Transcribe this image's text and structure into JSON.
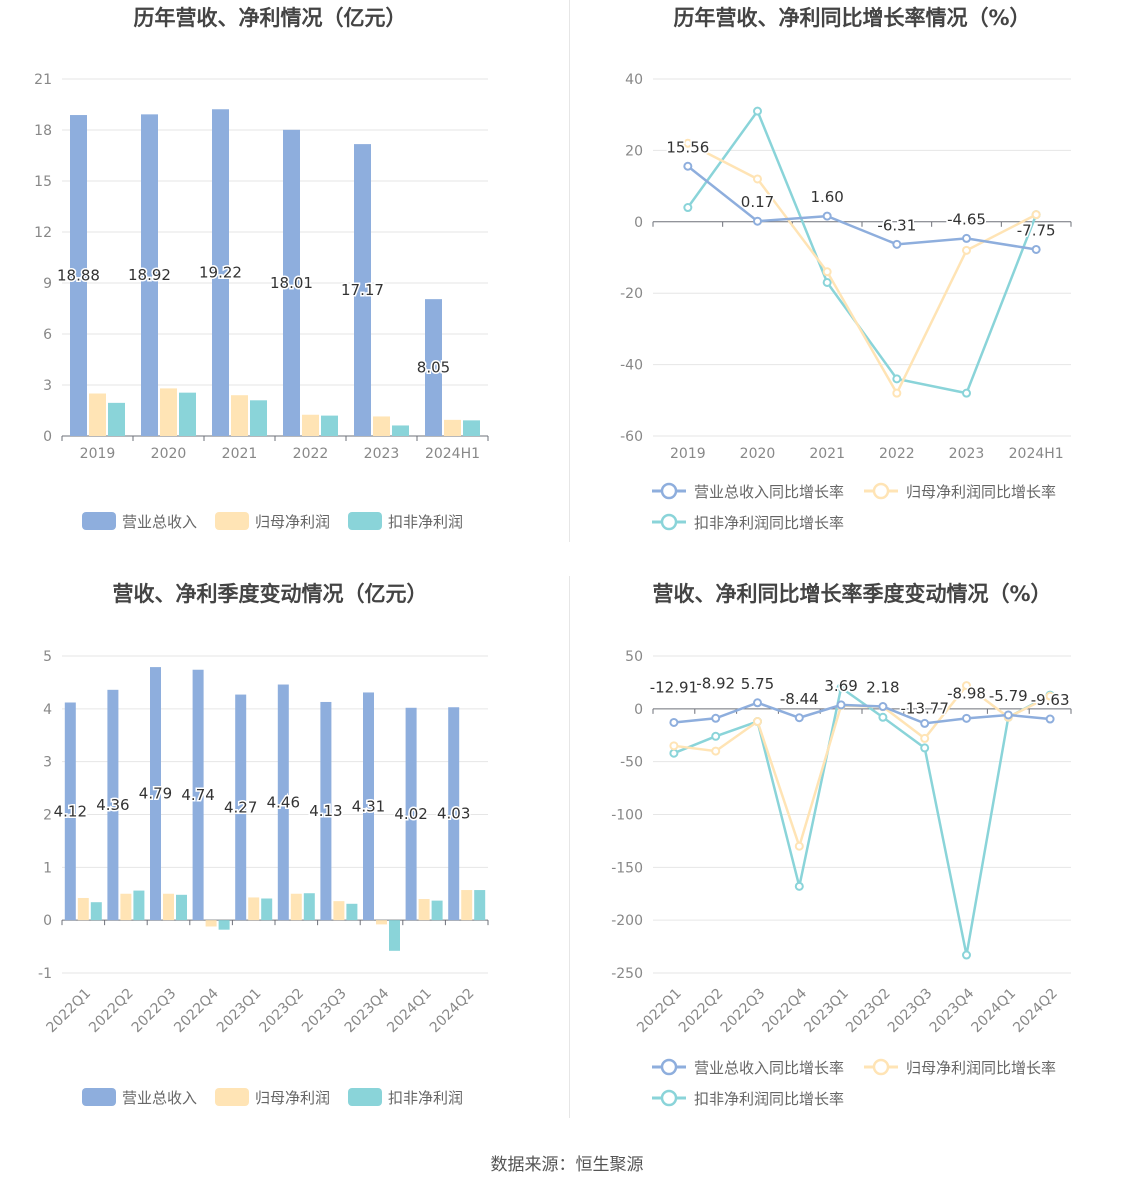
{
  "footer": "数据来源：恒生聚源",
  "colors": {
    "revenue": "#8eaedd",
    "net_profit": "#ffe4b5",
    "deducted": "#8ad4d9",
    "grid": "#e6e6e6",
    "text": "#888888"
  },
  "chart_data": [
    {
      "id": "annual-amount",
      "type": "bar",
      "title": "历年营收、净利情况（亿元）",
      "categories": [
        "2019",
        "2020",
        "2021",
        "2022",
        "2023",
        "2024H1"
      ],
      "ylim": [
        0,
        21
      ],
      "yticks": [
        0,
        3,
        6,
        9,
        12,
        15,
        18,
        21
      ],
      "series": [
        {
          "name": "营业总收入",
          "color": "#8eaedd",
          "values": [
            18.88,
            18.92,
            19.22,
            18.01,
            17.17,
            8.05
          ],
          "labels": [
            "18.88",
            "18.92",
            "19.22",
            "18.01",
            "17.17",
            "8.05"
          ]
        },
        {
          "name": "归母净利润",
          "color": "#ffe4b5",
          "values": [
            2.5,
            2.8,
            2.4,
            1.25,
            1.15,
            0.95
          ]
        },
        {
          "name": "扣非净利润",
          "color": "#8ad4d9",
          "values": [
            1.95,
            2.55,
            2.1,
            1.2,
            0.62,
            0.92
          ]
        }
      ],
      "grid": true,
      "legend": "bottom"
    },
    {
      "id": "annual-growth",
      "type": "line",
      "title": "历年营收、净利同比增长率情况（%）",
      "categories": [
        "2019",
        "2020",
        "2021",
        "2022",
        "2023",
        "2024H1"
      ],
      "ylim": [
        -60,
        40
      ],
      "yticks": [
        -60,
        -40,
        -20,
        0,
        20,
        40
      ],
      "series": [
        {
          "name": "营业总收入同比增长率",
          "color": "#8eaedd",
          "values": [
            15.56,
            0.17,
            1.6,
            -6.31,
            -4.65,
            -7.75
          ],
          "labels": [
            "15.56",
            "0.17",
            "1.60",
            "-6.31",
            "-4.65",
            "-7.75"
          ]
        },
        {
          "name": "归母净利润同比增长率",
          "color": "#ffe4b5",
          "values": [
            22,
            12,
            -14,
            -48,
            -8,
            2
          ]
        },
        {
          "name": "扣非净利润同比增长率",
          "color": "#8ad4d9",
          "values": [
            4,
            31,
            -17,
            -44,
            -48,
            2
          ]
        }
      ],
      "grid": true,
      "legend": "bottom"
    },
    {
      "id": "quarterly-amount",
      "type": "bar",
      "title": "营收、净利季度变动情况（亿元）",
      "categories": [
        "2022Q1",
        "2022Q2",
        "2022Q3",
        "2022Q4",
        "2023Q1",
        "2023Q2",
        "2023Q3",
        "2023Q4",
        "2024Q1",
        "2024Q2"
      ],
      "ylim": [
        -1,
        5
      ],
      "yticks": [
        -1,
        0,
        1,
        2,
        3,
        4,
        5
      ],
      "series": [
        {
          "name": "营业总收入",
          "color": "#8eaedd",
          "values": [
            4.12,
            4.36,
            4.79,
            4.74,
            4.27,
            4.46,
            4.13,
            4.31,
            4.02,
            4.03
          ],
          "labels": [
            "4.12",
            "4.36",
            "4.79",
            "4.74",
            "4.27",
            "4.46",
            "4.13",
            "4.31",
            "4.02",
            "4.03"
          ]
        },
        {
          "name": "归母净利润",
          "color": "#ffe4b5",
          "values": [
            0.42,
            0.5,
            0.5,
            -0.12,
            0.43,
            0.5,
            0.36,
            -0.08,
            0.4,
            0.57
          ]
        },
        {
          "name": "扣非净利润",
          "color": "#8ad4d9",
          "values": [
            0.34,
            0.56,
            0.48,
            -0.18,
            0.41,
            0.51,
            0.31,
            -0.58,
            0.37,
            0.57
          ]
        }
      ],
      "grid": true,
      "legend": "bottom"
    },
    {
      "id": "quarterly-growth",
      "type": "line",
      "title": "营收、净利同比增长率季度变动情况（%）",
      "categories": [
        "2022Q1",
        "2022Q2",
        "2022Q3",
        "2022Q4",
        "2023Q1",
        "2023Q2",
        "2023Q3",
        "2023Q4",
        "2024Q1",
        "2024Q2"
      ],
      "ylim": [
        -250,
        50
      ],
      "yticks": [
        -250,
        -200,
        -150,
        -100,
        -50,
        0,
        50
      ],
      "series": [
        {
          "name": "营业总收入同比增长率",
          "color": "#8eaedd",
          "values": [
            -12.91,
            -8.92,
            5.75,
            -8.44,
            3.69,
            2.18,
            -13.77,
            -8.98,
            -5.79,
            -9.63
          ],
          "labels": [
            "-12.91",
            "-8.92",
            "5.75",
            "-8.44",
            "3.69",
            "2.18",
            "-13.77",
            "-8.98",
            "-5.79",
            "-9.63"
          ]
        },
        {
          "name": "归母净利润同比增长率",
          "color": "#ffe4b5",
          "values": [
            -35,
            -40,
            -12,
            -130,
            3,
            2,
            -28,
            22,
            -8,
            12
          ]
        },
        {
          "name": "扣非净利润同比增长率",
          "color": "#8ad4d9",
          "values": [
            -42,
            -26,
            -12,
            -168,
            20,
            -8,
            -37,
            -233,
            -8,
            13
          ]
        }
      ],
      "grid": true,
      "legend": "bottom"
    }
  ]
}
